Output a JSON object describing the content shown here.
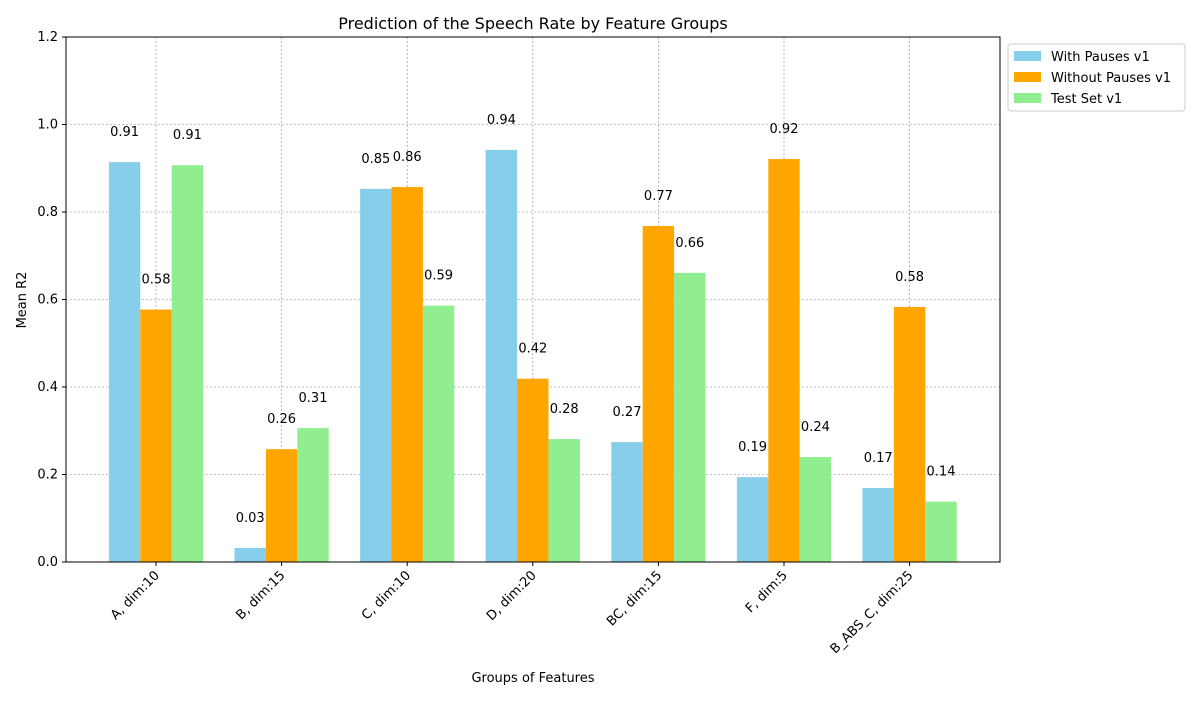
{
  "chart_data": {
    "type": "bar",
    "title": "Prediction of the Speech Rate by Feature Groups",
    "xlabel": "Groups of Features",
    "ylabel": "Mean R2",
    "ylim": [
      0,
      1.2
    ],
    "yticks": [
      0.0,
      0.2,
      0.4,
      0.6,
      0.8,
      1.0,
      1.2
    ],
    "ytick_labels": [
      "0.0",
      "0.2",
      "0.4",
      "0.6",
      "0.8",
      "1.0",
      "1.2"
    ],
    "categories": [
      "A, dim:10",
      "B, dim:15",
      "C, dim:10",
      "D, dim:20",
      "BC, dim:15",
      "F, dim:5",
      "B_ABS_C, dim:25"
    ],
    "series": [
      {
        "name": "With Pauses v1",
        "color": "#87ceeb",
        "values": [
          0.914,
          0.032,
          0.853,
          0.942,
          0.274,
          0.194,
          0.169
        ],
        "labels": [
          "0.91",
          "0.03",
          "0.85",
          "0.94",
          "0.27",
          "0.19",
          "0.17"
        ]
      },
      {
        "name": "Without Pauses v1",
        "color": "#ffa500",
        "values": [
          0.577,
          0.258,
          0.857,
          0.419,
          0.768,
          0.921,
          0.583
        ],
        "labels": [
          "0.58",
          "0.26",
          "0.86",
          "0.42",
          "0.77",
          "0.92",
          "0.58"
        ]
      },
      {
        "name": "Test Set v1",
        "color": "#90ee90",
        "values": [
          0.907,
          0.306,
          0.586,
          0.281,
          0.661,
          0.24,
          0.138
        ],
        "labels": [
          "0.91",
          "0.31",
          "0.59",
          "0.28",
          "0.66",
          "0.24",
          "0.14"
        ]
      }
    ],
    "grid": true,
    "legend_position": "top-right-outside"
  }
}
